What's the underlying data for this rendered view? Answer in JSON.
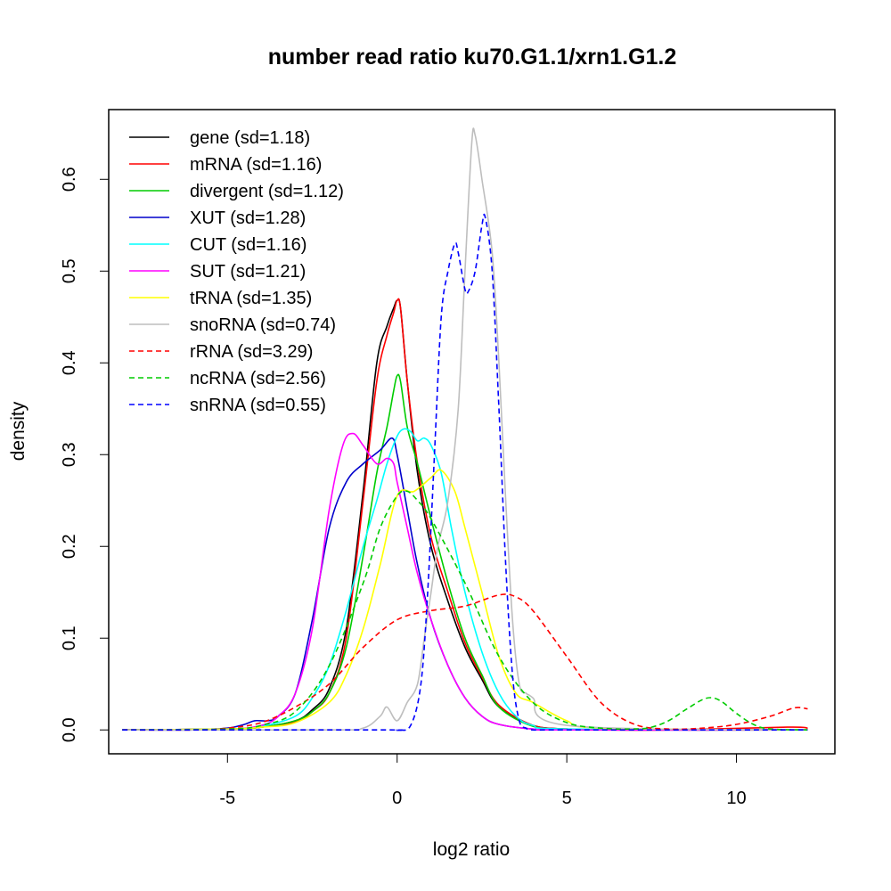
{
  "chart_data": {
    "type": "line",
    "title": "number read ratio ku70.G1.1/xrn1.G1.2",
    "xlabel": "log2 ratio",
    "ylabel": "density",
    "xlim": [
      -8.5,
      12.9
    ],
    "ylim": [
      -0.026,
      0.676
    ],
    "x_ticks": [
      -5,
      0,
      5,
      10
    ],
    "x_tick_labels": [
      "-5",
      "0",
      "5",
      "10"
    ],
    "y_ticks": [
      0.0,
      0.1,
      0.2,
      0.3,
      0.4,
      0.5,
      0.6
    ],
    "y_tick_labels": [
      "0.0",
      "0.1",
      "0.2",
      "0.3",
      "0.4",
      "0.5",
      "0.6"
    ],
    "grid": false,
    "legend_position": "top-left",
    "series": [
      {
        "name": "gene (sd=1.18)",
        "color": "#000000",
        "dash": "solid",
        "x": [
          -8.1,
          -5,
          -4,
          -3,
          -2.5,
          -2,
          -1.5,
          -1,
          -0.6,
          -0.3,
          -0.1,
          0,
          0.1,
          0.3,
          0.6,
          1,
          1.5,
          2,
          2.5,
          3,
          4,
          5,
          6,
          8,
          12.1
        ],
        "y": [
          0,
          0.001,
          0.003,
          0.01,
          0.022,
          0.045,
          0.11,
          0.26,
          0.4,
          0.44,
          0.46,
          0.468,
          0.46,
          0.38,
          0.28,
          0.2,
          0.14,
          0.09,
          0.055,
          0.025,
          0.005,
          0.001,
          0,
          0,
          0
        ]
      },
      {
        "name": "mRNA (sd=1.16)",
        "color": "#ff0000",
        "dash": "solid",
        "x": [
          -8.1,
          -5,
          -4,
          -3,
          -2.5,
          -2,
          -1.5,
          -1,
          -0.6,
          -0.3,
          -0.1,
          0,
          0.1,
          0.3,
          0.6,
          1,
          1.5,
          2,
          2.5,
          3,
          4,
          5,
          6,
          8,
          11.5,
          12.1
        ],
        "y": [
          0,
          0.001,
          0.003,
          0.009,
          0.02,
          0.04,
          0.1,
          0.25,
          0.38,
          0.43,
          0.455,
          0.468,
          0.46,
          0.38,
          0.29,
          0.21,
          0.15,
          0.095,
          0.058,
          0.027,
          0.005,
          0.001,
          0,
          0,
          0.003,
          0.002
        ]
      },
      {
        "name": "divergent (sd=1.12)",
        "color": "#00cc00",
        "dash": "solid",
        "x": [
          -8.1,
          -5,
          -4,
          -3,
          -2.5,
          -2,
          -1.5,
          -1,
          -0.6,
          -0.3,
          -0.1,
          0,
          0.1,
          0.3,
          0.6,
          1,
          1.5,
          2,
          2.5,
          3,
          4,
          5,
          6,
          12.1
        ],
        "y": [
          0,
          0.001,
          0.003,
          0.01,
          0.02,
          0.04,
          0.09,
          0.19,
          0.28,
          0.33,
          0.37,
          0.386,
          0.38,
          0.33,
          0.29,
          0.23,
          0.16,
          0.1,
          0.06,
          0.025,
          0.004,
          0.001,
          0,
          0
        ]
      },
      {
        "name": "XUT (sd=1.28)",
        "color": "#0000cc",
        "dash": "solid",
        "x": [
          -8.1,
          -6,
          -5,
          -4.5,
          -4.2,
          -3.8,
          -3.5,
          -3,
          -2.5,
          -2,
          -1.5,
          -1,
          -0.5,
          -0.15,
          0,
          0.3,
          0.6,
          1,
          1.5,
          2,
          2.5,
          3,
          4,
          5,
          12.1
        ],
        "y": [
          0,
          0,
          0.002,
          0.006,
          0.01,
          0.01,
          0.015,
          0.04,
          0.12,
          0.22,
          0.27,
          0.29,
          0.305,
          0.318,
          0.3,
          0.24,
          0.18,
          0.12,
          0.07,
          0.035,
          0.015,
          0.006,
          0.001,
          0,
          0
        ]
      },
      {
        "name": "CUT (sd=1.16)",
        "color": "#00ffff",
        "dash": "solid",
        "x": [
          -8.1,
          -5,
          -4,
          -3,
          -2.5,
          -2,
          -1.5,
          -1,
          -0.6,
          -0.3,
          0,
          0.2,
          0.4,
          0.6,
          0.8,
          1,
          1.3,
          1.6,
          2,
          2.5,
          3,
          3.5,
          4,
          5,
          12.1
        ],
        "y": [
          0,
          0.001,
          0.004,
          0.015,
          0.035,
          0.07,
          0.13,
          0.2,
          0.25,
          0.29,
          0.32,
          0.328,
          0.325,
          0.315,
          0.318,
          0.31,
          0.28,
          0.22,
          0.15,
          0.085,
          0.04,
          0.015,
          0.005,
          0.001,
          0
        ]
      },
      {
        "name": "SUT (sd=1.21)",
        "color": "#ff00ff",
        "dash": "solid",
        "x": [
          -8.1,
          -5,
          -4,
          -3.5,
          -3,
          -2.5,
          -2,
          -1.6,
          -1.3,
          -1,
          -0.6,
          -0.3,
          -0.1,
          0,
          0.3,
          0.6,
          1,
          1.5,
          2,
          2.5,
          3,
          4,
          5,
          12.1
        ],
        "y": [
          0,
          0.001,
          0.005,
          0.015,
          0.04,
          0.11,
          0.24,
          0.31,
          0.323,
          0.31,
          0.29,
          0.296,
          0.29,
          0.27,
          0.22,
          0.17,
          0.12,
          0.07,
          0.035,
          0.015,
          0.006,
          0.001,
          0,
          0
        ]
      },
      {
        "name": "tRNA (sd=1.35)",
        "color": "#ffff00",
        "dash": "solid",
        "x": [
          -8.1,
          -5,
          -4,
          -3,
          -2,
          -1.5,
          -1,
          -0.5,
          0,
          0.5,
          1,
          1.3,
          1.7,
          2,
          2.5,
          3,
          3.5,
          4,
          5,
          6,
          12.1
        ],
        "y": [
          0,
          0.001,
          0.003,
          0.008,
          0.03,
          0.06,
          0.11,
          0.18,
          0.255,
          0.26,
          0.275,
          0.283,
          0.26,
          0.22,
          0.15,
          0.08,
          0.04,
          0.03,
          0.01,
          0.002,
          0
        ]
      },
      {
        "name": "snoRNA (sd=0.74)",
        "color": "#bebebe",
        "dash": "solid",
        "x": [
          -8.1,
          -2,
          -1,
          -0.5,
          -0.3,
          0,
          0.3,
          0.6,
          0.8,
          1,
          1.2,
          1.5,
          1.8,
          2,
          2.2,
          2.3,
          2.5,
          2.8,
          3,
          3.2,
          3.4,
          3.6,
          3.8,
          4,
          5,
          12.1
        ],
        "y": [
          0,
          0,
          0.002,
          0.015,
          0.025,
          0.01,
          0.03,
          0.05,
          0.1,
          0.15,
          0.2,
          0.25,
          0.35,
          0.5,
          0.64,
          0.648,
          0.6,
          0.52,
          0.4,
          0.25,
          0.12,
          0.05,
          0.04,
          0.035,
          0.005,
          0
        ]
      },
      {
        "name": "rRNA (sd=3.29)",
        "color": "#ff0000",
        "dash": "dashed",
        "x": [
          -8.1,
          -6,
          -5,
          -4,
          -3,
          -2,
          -1,
          0,
          1,
          2,
          3,
          3.5,
          4,
          5,
          6,
          7,
          8,
          9,
          10,
          11,
          11.7,
          12.1
        ],
        "y": [
          0,
          0,
          0.002,
          0.008,
          0.025,
          0.05,
          0.09,
          0.12,
          0.13,
          0.135,
          0.147,
          0.145,
          0.13,
          0.08,
          0.03,
          0.006,
          0.001,
          0.002,
          0.006,
          0.015,
          0.024,
          0.023
        ]
      },
      {
        "name": "ncRNA (sd=2.56)",
        "color": "#00cc00",
        "dash": "dashed",
        "x": [
          -8.1,
          -5,
          -4,
          -3,
          -2,
          -1,
          -0.5,
          0,
          0.3,
          0.6,
          1,
          2,
          3,
          4,
          5,
          6,
          7,
          7.5,
          8,
          8.5,
          9,
          9.3,
          9.6,
          10,
          10.5,
          11,
          12.1
        ],
        "y": [
          0,
          0.001,
          0.005,
          0.02,
          0.07,
          0.16,
          0.22,
          0.255,
          0.26,
          0.25,
          0.23,
          0.16,
          0.08,
          0.03,
          0.008,
          0.002,
          0.001,
          0.003,
          0.01,
          0.022,
          0.033,
          0.035,
          0.03,
          0.018,
          0.006,
          0.001,
          0
        ]
      },
      {
        "name": "snRNA (sd=0.55)",
        "color": "#0000ff",
        "dash": "dashed",
        "x": [
          -8.1,
          -0.5,
          0,
          0.4,
          0.7,
          0.9,
          1.1,
          1.3,
          1.5,
          1.7,
          1.8,
          2,
          2.1,
          2.3,
          2.5,
          2.6,
          2.8,
          3,
          3.2,
          3.4,
          3.6,
          3.8,
          4,
          5,
          12.1
        ],
        "y": [
          0,
          0,
          0,
          0.005,
          0.05,
          0.15,
          0.3,
          0.45,
          0.5,
          0.53,
          0.52,
          0.48,
          0.478,
          0.5,
          0.55,
          0.558,
          0.5,
          0.35,
          0.18,
          0.06,
          0.01,
          0.002,
          0,
          0,
          0
        ]
      }
    ]
  }
}
